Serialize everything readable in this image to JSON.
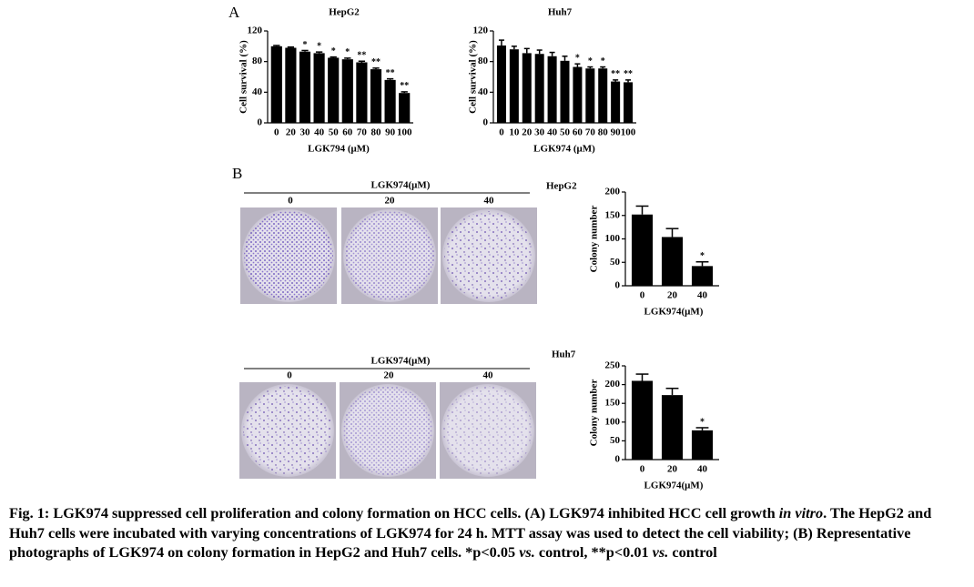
{
  "panel_labels": [
    "A",
    "B"
  ],
  "chart_data": [
    {
      "type": "bar",
      "title": "HepG2",
      "xlabel": "LGK794 (μM)",
      "ylabel": "Cell survival (%)",
      "categories": [
        "0",
        "20",
        "30",
        "40",
        "50",
        "60",
        "70",
        "80",
        "90",
        "100"
      ],
      "values": [
        100,
        98,
        93,
        91,
        85,
        83,
        79,
        70,
        56,
        39
      ],
      "errors": [
        1,
        1,
        1.5,
        1.5,
        1,
        1.5,
        1.5,
        1.5,
        1.5,
        1.5
      ],
      "annotations": [
        null,
        null,
        "*",
        "*",
        "*",
        "*",
        "**",
        "**",
        "**",
        "**"
      ],
      "color": "#000000",
      "ylim": [
        0,
        120
      ],
      "yticks": [
        0,
        40,
        80,
        120
      ]
    },
    {
      "type": "bar",
      "title": "Huh7",
      "xlabel": "LGK974 (μM)",
      "ylabel": "Cell survival (%)",
      "categories": [
        "0",
        "10",
        "20",
        "30",
        "40",
        "50",
        "60",
        "70",
        "80",
        "90",
        "100"
      ],
      "values": [
        101,
        96,
        91,
        90,
        87,
        81,
        73,
        71,
        71,
        54,
        53
      ],
      "errors": [
        7,
        4,
        6,
        5,
        5,
        6,
        4,
        2,
        2,
        2,
        3
      ],
      "annotations": [
        null,
        null,
        null,
        null,
        null,
        null,
        "*",
        "*",
        "*",
        "**",
        "**"
      ],
      "color": "#000000",
      "ylim": [
        0,
        120
      ],
      "yticks": [
        0,
        40,
        80,
        120
      ]
    },
    {
      "type": "bar",
      "title": "HepG2",
      "xlabel": "LGK974(μM)",
      "ylabel": "Colony number",
      "categories": [
        "0",
        "20",
        "40"
      ],
      "values": [
        152,
        104,
        42
      ],
      "errors": [
        18,
        18,
        9
      ],
      "annotations": [
        null,
        null,
        "*"
      ],
      "color": "#000000",
      "ylim": [
        0,
        200
      ],
      "yticks": [
        0,
        50,
        100,
        150,
        200
      ]
    },
    {
      "type": "bar",
      "title": "Huh7",
      "xlabel": "LGK974(μM)",
      "ylabel": "Colony number",
      "categories": [
        "0",
        "20",
        "40"
      ],
      "values": [
        210,
        172,
        78
      ],
      "errors": [
        18,
        18,
        7
      ],
      "annotations": [
        null,
        null,
        "*"
      ],
      "color": "#000000",
      "ylim": [
        0,
        250
      ],
      "yticks": [
        0,
        50,
        100,
        150,
        200,
        250
      ]
    }
  ],
  "photos": [
    {
      "label": "LGK974(μM)",
      "doses": [
        "0",
        "20",
        "40"
      ]
    },
    {
      "label": "LGK974(μM)",
      "doses": [
        "0",
        "20",
        "40"
      ]
    }
  ],
  "caption": [
    "Fig. 1: LGK974 suppressed cell proliferation and colony formation on HCC cells. (A) LGK974 inhibited HCC cell growth ",
    "in vitro",
    ". The HepG2 and Huh7 cells were incubated with varying concentrations of LGK974 for 24 h. MTT assay was used to detect the cell viability; (B) Representative photographs of LGK974 on colony formation in HepG2 and Huh7 cells. *p<0.05 ",
    "vs.",
    " control, **p<0.01 ",
    "vs.",
    " control"
  ]
}
